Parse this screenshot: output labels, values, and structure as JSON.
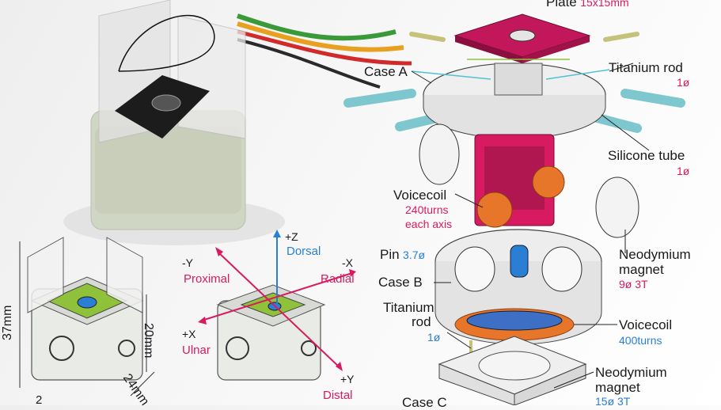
{
  "photo_callouts": [],
  "dimensions": {
    "height_total": "37mm",
    "height_case": "20mm",
    "depth": "24mm",
    "width_cut": "2"
  },
  "axes": {
    "z_pos": {
      "sign": "+Z",
      "name": "Dorsal"
    },
    "y_neg": {
      "sign": "-Y",
      "name": "Proximal"
    },
    "x_neg": {
      "sign": "-X",
      "name": "Radial"
    },
    "x_pos": {
      "sign": "+X",
      "name": "Ulnar"
    },
    "y_pos": {
      "sign": "+Y",
      "name": "Distal"
    }
  },
  "parts": {
    "plate": {
      "name": "Plate",
      "spec": "15x15mm"
    },
    "titanium_rod_top": {
      "name": "Titanium rod",
      "spec": "1ø"
    },
    "case_a": {
      "name": "Case A"
    },
    "silicone_tube": {
      "name": "Silicone tube",
      "spec": "1ø"
    },
    "voicecoil_top": {
      "name": "Voicecoil",
      "spec1": "240turns",
      "spec2": "each axis"
    },
    "pin": {
      "name": "Pin",
      "spec": "3.7ø"
    },
    "magnet_top": {
      "name1": "Neodymium",
      "name2": "magnet",
      "spec": "9ø 3T"
    },
    "case_b": {
      "name": "Case B"
    },
    "titanium_rod_bottom": {
      "name1": "Titanium",
      "name2": "rod",
      "spec": "1ø"
    },
    "voicecoil_bottom": {
      "name": "Voicecoil",
      "spec": "400turns"
    },
    "magnet_bottom": {
      "name1": "Neodymium",
      "name2": "magnet",
      "spec": "15ø 3T"
    },
    "case_c": {
      "name": "Case C"
    }
  },
  "colors": {
    "magenta": "#d81b60",
    "blue": "#2a7fd4",
    "green": "#8fc23a",
    "orange": "#e8762a",
    "cyan": "#4fc1d6"
  }
}
